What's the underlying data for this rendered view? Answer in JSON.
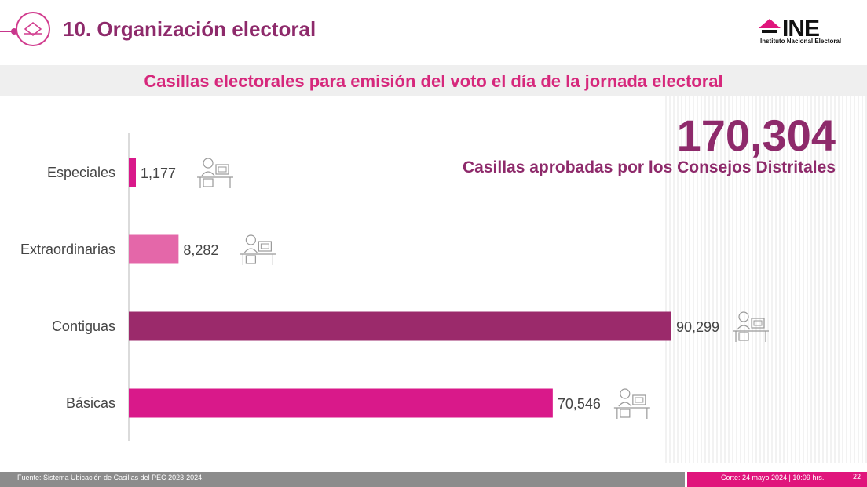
{
  "header": {
    "title": "10. Organización electoral"
  },
  "logo": {
    "name": "INE",
    "subtitle": "Instituto Nacional Electoral"
  },
  "subtitle": "Casillas electorales para emisión del voto el día de la jornada electoral",
  "summary": {
    "total": "170,304",
    "label": "Casillas aprobadas por los Consejos Distritales"
  },
  "footer": {
    "source": "Fuente: Sistema Ubicación de Casillas del PEC 2023-2024.",
    "cutoff": "Corte: 24 mayo 2024 | 10:09 hrs.",
    "page": "22"
  },
  "colors": {
    "accent": "#d6287c",
    "dark": "#8e2a6b",
    "pink_light": "#e467a9",
    "purple": "#9b2a6b",
    "magenta": "#d9198a"
  },
  "chart_data": {
    "type": "bar",
    "orientation": "horizontal",
    "categories": [
      "Especiales",
      "Extraordinarias",
      "Contiguas",
      "Básicas"
    ],
    "values": [
      1177,
      8282,
      90299,
      70546
    ],
    "value_labels": [
      "1,177",
      "8,282",
      "90,299",
      "70,546"
    ],
    "bar_colors": [
      "#d9198a",
      "#e467a9",
      "#9b2a6b",
      "#d9198a"
    ],
    "xlim": [
      0,
      90299
    ],
    "grid": false,
    "icon": "voter-at-desk-icon"
  }
}
